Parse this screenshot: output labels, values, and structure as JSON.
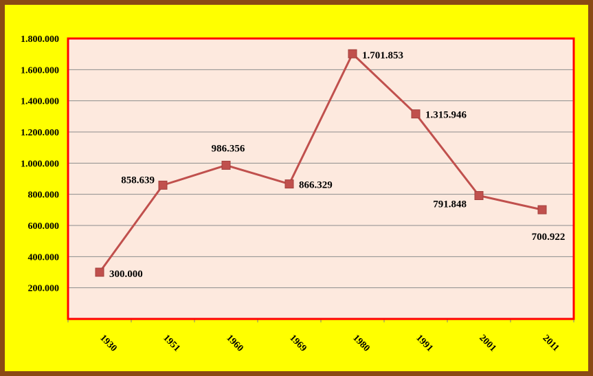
{
  "chart_data": {
    "type": "line",
    "categories": [
      "1930",
      "1951",
      "1960",
      "1969",
      "1980",
      "1991",
      "2001",
      "2011"
    ],
    "series": [
      {
        "values": [
          300000,
          858639,
          986356,
          866329,
          1701853,
          1315946,
          791848,
          700922
        ]
      }
    ],
    "data_labels": [
      "300.000",
      "858.639",
      "986.356",
      "866.329",
      "1.701.853",
      "1.315.946",
      "791.848",
      "700.922"
    ],
    "y_ticks": [
      {
        "value": 200000,
        "label": "200.000"
      },
      {
        "value": 400000,
        "label": "400.000"
      },
      {
        "value": 600000,
        "label": "600.000"
      },
      {
        "value": 800000,
        "label": "800.000"
      },
      {
        "value": 1000000,
        "label": "1.000.000"
      },
      {
        "value": 1200000,
        "label": "1.200.000"
      },
      {
        "value": 1400000,
        "label": "1.400.000"
      },
      {
        "value": 1600000,
        "label": "1.600.000"
      },
      {
        "value": 1800000,
        "label": "1.800.000"
      }
    ],
    "ylim": [
      0,
      1800000
    ],
    "title": "",
    "xlabel": "",
    "ylabel": "",
    "grid": true,
    "legend": "none",
    "colors": {
      "frame_border": "#8B4A14",
      "frame_background": "#FFFF00",
      "plot_border": "#FF0000",
      "plot_background": "#FDE9DE",
      "gridline": "#8C8C8C",
      "series": "#C0504D"
    }
  }
}
